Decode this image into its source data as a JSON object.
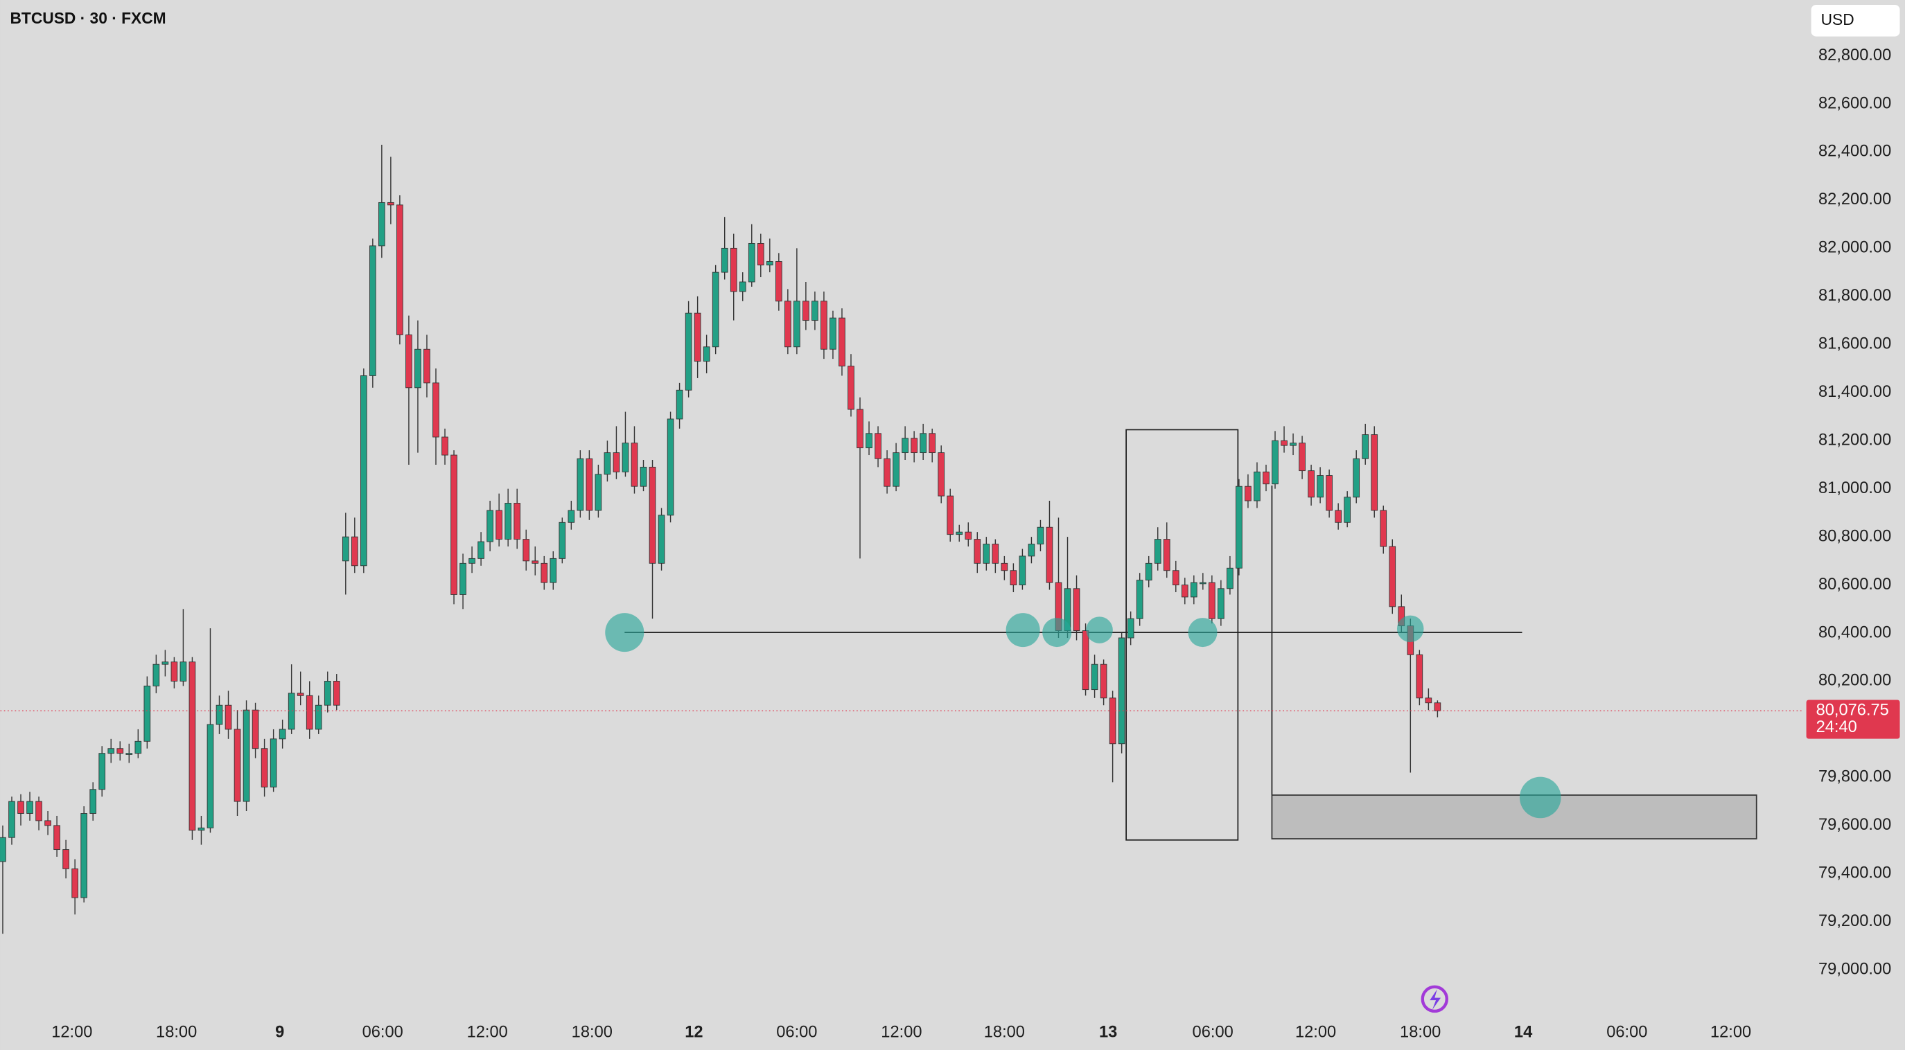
{
  "chart_data": {
    "type": "candlestick",
    "title": "BTCUSD · 30 · FXCM",
    "currency": "USD",
    "colors": {
      "up": "#22a085",
      "down": "#e0384f"
    },
    "grid": false,
    "ylim": [
      78818,
      83032
    ],
    "yticks": [
      {
        "value": 79000,
        "label": "79,000.00"
      },
      {
        "value": 79200,
        "label": "79,200.00"
      },
      {
        "value": 79400,
        "label": "79,400.00"
      },
      {
        "value": 79600,
        "label": "79,600.00"
      },
      {
        "value": 79800,
        "label": "79,800.00"
      },
      {
        "value": 80000,
        "label": "80,000.00"
      },
      {
        "value": 80200,
        "label": "80,200.00"
      },
      {
        "value": 80400,
        "label": "80,400.00"
      },
      {
        "value": 80600,
        "label": "80,600.00"
      },
      {
        "value": 80800,
        "label": "80,800.00"
      },
      {
        "value": 81000,
        "label": "81,000.00"
      },
      {
        "value": 81200,
        "label": "81,200.00"
      },
      {
        "value": 81400,
        "label": "81,400.00"
      },
      {
        "value": 81600,
        "label": "81,600.00"
      },
      {
        "value": 81800,
        "label": "81,800.00"
      },
      {
        "value": 82000,
        "label": "82,000.00"
      },
      {
        "value": 82200,
        "label": "82,200.00"
      },
      {
        "value": 82400,
        "label": "82,400.00"
      },
      {
        "value": 82600,
        "label": "82,600.00"
      },
      {
        "value": 82800,
        "label": "82,800.00"
      }
    ],
    "xlim": [
      -0.27,
      199.6
    ],
    "xticks": [
      {
        "value": 7.67,
        "label": "12:00"
      },
      {
        "value": 19.25,
        "label": "18:00"
      },
      {
        "value": 30.7,
        "label": "9"
      },
      {
        "value": 42.1,
        "label": "06:00"
      },
      {
        "value": 53.7,
        "label": "12:00"
      },
      {
        "value": 65.3,
        "label": "18:00"
      },
      {
        "value": 76.6,
        "label": "12"
      },
      {
        "value": 88.0,
        "label": "06:00"
      },
      {
        "value": 99.6,
        "label": "12:00"
      },
      {
        "value": 111.0,
        "label": "18:00"
      },
      {
        "value": 122.5,
        "label": "13"
      },
      {
        "value": 134.1,
        "label": "06:00"
      },
      {
        "value": 145.5,
        "label": "12:00"
      },
      {
        "value": 157.1,
        "label": "18:00"
      },
      {
        "value": 168.5,
        "label": "14"
      },
      {
        "value": 180.0,
        "label": "06:00"
      },
      {
        "value": 191.5,
        "label": "12:00"
      }
    ],
    "last_price": {
      "value": 80076.75,
      "label": "80,076.75"
    },
    "countdown": "24:40",
    "candles": [
      [
        79450,
        79600,
        79150,
        79550
      ],
      [
        79550,
        79720,
        79520,
        79700
      ],
      [
        79700,
        79730,
        79600,
        79650
      ],
      [
        79650,
        79740,
        79620,
        79700
      ],
      [
        79700,
        79720,
        79580,
        79620
      ],
      [
        79620,
        79660,
        79560,
        79600
      ],
      [
        79600,
        79640,
        79470,
        79500
      ],
      [
        79500,
        79540,
        79380,
        79420
      ],
      [
        79420,
        79460,
        79230,
        79300
      ],
      [
        79300,
        79680,
        79280,
        79650
      ],
      [
        79650,
        79780,
        79620,
        79750
      ],
      [
        79750,
        79930,
        79720,
        79900
      ],
      [
        79900,
        79960,
        79860,
        79920
      ],
      [
        79920,
        79950,
        79870,
        79900
      ],
      [
        79900,
        79940,
        79860,
        79900
      ],
      [
        79900,
        80000,
        79880,
        79950
      ],
      [
        79950,
        80220,
        79920,
        80180
      ],
      [
        80180,
        80310,
        80150,
        80270
      ],
      [
        80270,
        80330,
        80220,
        80280
      ],
      [
        80280,
        80300,
        80170,
        80200
      ],
      [
        80200,
        80500,
        80180,
        80280
      ],
      [
        80280,
        80300,
        79540,
        79580
      ],
      [
        79580,
        79640,
        79520,
        79590
      ],
      [
        79590,
        80420,
        79570,
        80020
      ],
      [
        80020,
        80140,
        79980,
        80100
      ],
      [
        80100,
        80160,
        79960,
        80000
      ],
      [
        80000,
        80080,
        79640,
        79700
      ],
      [
        79700,
        80120,
        79660,
        80080
      ],
      [
        80080,
        80110,
        79880,
        79920
      ],
      [
        79920,
        79960,
        79720,
        79760
      ],
      [
        79760,
        80000,
        79740,
        79960
      ],
      [
        79960,
        80040,
        79920,
        80000
      ],
      [
        80000,
        80270,
        79980,
        80150
      ],
      [
        80150,
        80240,
        80100,
        80140
      ],
      [
        80140,
        80200,
        79960,
        80000
      ],
      [
        80000,
        80140,
        79980,
        80100
      ],
      [
        80100,
        80240,
        80070,
        80200
      ],
      [
        80200,
        80230,
        80080,
        80100
      ],
      [
        80700,
        80900,
        80560,
        80800
      ],
      [
        80800,
        80880,
        80650,
        80680
      ],
      [
        80680,
        81500,
        80650,
        81470
      ],
      [
        81470,
        82040,
        81420,
        82010
      ],
      [
        82010,
        82430,
        81960,
        82190
      ],
      [
        82190,
        82380,
        82100,
        82180
      ],
      [
        82180,
        82220,
        81600,
        81640
      ],
      [
        81640,
        81720,
        81100,
        81420
      ],
      [
        81420,
        81700,
        81150,
        81580
      ],
      [
        81580,
        81640,
        81380,
        81440
      ],
      [
        81440,
        81500,
        81100,
        81215
      ],
      [
        81215,
        81250,
        81100,
        81140
      ],
      [
        81140,
        81160,
        80520,
        80560
      ],
      [
        80560,
        80730,
        80500,
        80690
      ],
      [
        80690,
        80760,
        80650,
        80710
      ],
      [
        80710,
        80820,
        80680,
        80780
      ],
      [
        80780,
        80950,
        80740,
        80910
      ],
      [
        80910,
        80980,
        80760,
        80790
      ],
      [
        80790,
        81000,
        80760,
        80940
      ],
      [
        80940,
        81000,
        80750,
        80790
      ],
      [
        80790,
        80830,
        80660,
        80700
      ],
      [
        80700,
        80760,
        80640,
        80690
      ],
      [
        80690,
        80720,
        80580,
        80610
      ],
      [
        80610,
        80740,
        80580,
        80710
      ],
      [
        80710,
        80880,
        80690,
        80860
      ],
      [
        80860,
        80950,
        80830,
        80910
      ],
      [
        80910,
        81160,
        80880,
        81125
      ],
      [
        81125,
        81160,
        80870,
        80910
      ],
      [
        80910,
        81100,
        80880,
        81060
      ],
      [
        81060,
        81200,
        81030,
        81150
      ],
      [
        81150,
        81260,
        81040,
        81070
      ],
      [
        81070,
        81320,
        81050,
        81190
      ],
      [
        81190,
        81260,
        80980,
        81010
      ],
      [
        81010,
        81120,
        80990,
        81090
      ],
      [
        81090,
        81120,
        80460,
        80690
      ],
      [
        80690,
        80920,
        80660,
        80890
      ],
      [
        80890,
        81320,
        80860,
        81290
      ],
      [
        81290,
        81440,
        81250,
        81410
      ],
      [
        81410,
        81780,
        81380,
        81730
      ],
      [
        81730,
        81800,
        81460,
        81530
      ],
      [
        81530,
        81640,
        81480,
        81590
      ],
      [
        81590,
        81930,
        81560,
        81900
      ],
      [
        81900,
        82130,
        81870,
        82000
      ],
      [
        82000,
        82060,
        81700,
        81820
      ],
      [
        81820,
        81900,
        81780,
        81860
      ],
      [
        81860,
        82100,
        81840,
        82020
      ],
      [
        82020,
        82060,
        81880,
        81930
      ],
      [
        81930,
        82040,
        81900,
        81945
      ],
      [
        81945,
        81980,
        81740,
        81780
      ],
      [
        81780,
        81830,
        81560,
        81590
      ],
      [
        81590,
        82000,
        81560,
        81780
      ],
      [
        81780,
        81860,
        81660,
        81700
      ],
      [
        81700,
        81820,
        81660,
        81780
      ],
      [
        81780,
        81820,
        81540,
        81580
      ],
      [
        81580,
        81740,
        81540,
        81710
      ],
      [
        81710,
        81750,
        81470,
        81510
      ],
      [
        81510,
        81560,
        81300,
        81330
      ],
      [
        81330,
        81380,
        80710,
        81170
      ],
      [
        81170,
        81280,
        81140,
        81230
      ],
      [
        81230,
        81260,
        81090,
        81125
      ],
      [
        81125,
        81160,
        80980,
        81010
      ],
      [
        81010,
        81190,
        80990,
        81150
      ],
      [
        81150,
        81260,
        81120,
        81210
      ],
      [
        81210,
        81240,
        81110,
        81150
      ],
      [
        81150,
        81270,
        81120,
        81230
      ],
      [
        81230,
        81250,
        81110,
        81150
      ],
      [
        81150,
        81180,
        80940,
        80970
      ],
      [
        80970,
        81000,
        80780,
        80810
      ],
      [
        80810,
        80850,
        80780,
        80820
      ],
      [
        80820,
        80860,
        80760,
        80790
      ],
      [
        80790,
        80820,
        80650,
        80690
      ],
      [
        80690,
        80800,
        80660,
        80770
      ],
      [
        80770,
        80790,
        80650,
        80690
      ],
      [
        80690,
        80720,
        80620,
        80660
      ],
      [
        80660,
        80690,
        80570,
        80600
      ],
      [
        80600,
        80750,
        80580,
        80720
      ],
      [
        80720,
        80800,
        80690,
        80770
      ],
      [
        80770,
        80870,
        80740,
        80840
      ],
      [
        80840,
        80950,
        80580,
        80610
      ],
      [
        80610,
        80880,
        80380,
        80410
      ],
      [
        80410,
        80800,
        80380,
        80585
      ],
      [
        80585,
        80640,
        80370,
        80410
      ],
      [
        80410,
        80440,
        80140,
        80165
      ],
      [
        80165,
        80310,
        80130,
        80270
      ],
      [
        80270,
        80290,
        80100,
        80130
      ],
      [
        80130,
        80160,
        79780,
        79940
      ],
      [
        79940,
        80400,
        79900,
        80380
      ],
      [
        80380,
        80490,
        80350,
        80460
      ],
      [
        80460,
        80650,
        80430,
        80620
      ],
      [
        80620,
        80720,
        80590,
        80690
      ],
      [
        80690,
        80840,
        80660,
        80790
      ],
      [
        80790,
        80860,
        80630,
        80660
      ],
      [
        80660,
        80700,
        80570,
        80600
      ],
      [
        80600,
        80630,
        80520,
        80550
      ],
      [
        80550,
        80640,
        80520,
        80610
      ],
      [
        80610,
        80650,
        80580,
        80610
      ],
      [
        80610,
        80640,
        80440,
        80460
      ],
      [
        80460,
        80620,
        80430,
        80585
      ],
      [
        80585,
        80720,
        80560,
        80670
      ],
      [
        80670,
        81040,
        80640,
        81010
      ],
      [
        81010,
        81060,
        80920,
        80950
      ],
      [
        80950,
        81110,
        80920,
        81070
      ],
      [
        81070,
        81100,
        80990,
        81020
      ],
      [
        81020,
        81240,
        81000,
        81200
      ],
      [
        81200,
        81260,
        81150,
        81180
      ],
      [
        81180,
        81230,
        81140,
        81190
      ],
      [
        81190,
        81220,
        81040,
        81075
      ],
      [
        81075,
        81100,
        80930,
        80965
      ],
      [
        80965,
        81090,
        80940,
        81055
      ],
      [
        81055,
        81080,
        80880,
        80910
      ],
      [
        80910,
        80940,
        80830,
        80860
      ],
      [
        80860,
        80990,
        80840,
        80965
      ],
      [
        80965,
        81160,
        80940,
        81125
      ],
      [
        81125,
        81270,
        81100,
        81225
      ],
      [
        81225,
        81260,
        80880,
        80910
      ],
      [
        80910,
        80930,
        80730,
        80760
      ],
      [
        80760,
        80790,
        80480,
        80510
      ],
      [
        80510,
        80560,
        80400,
        80430
      ],
      [
        80430,
        80460,
        79820,
        80310
      ],
      [
        80310,
        80330,
        80100,
        80130
      ],
      [
        80130,
        80170,
        80080,
        80110
      ],
      [
        80110,
        80120,
        80050,
        80076.75
      ]
    ]
  }
}
